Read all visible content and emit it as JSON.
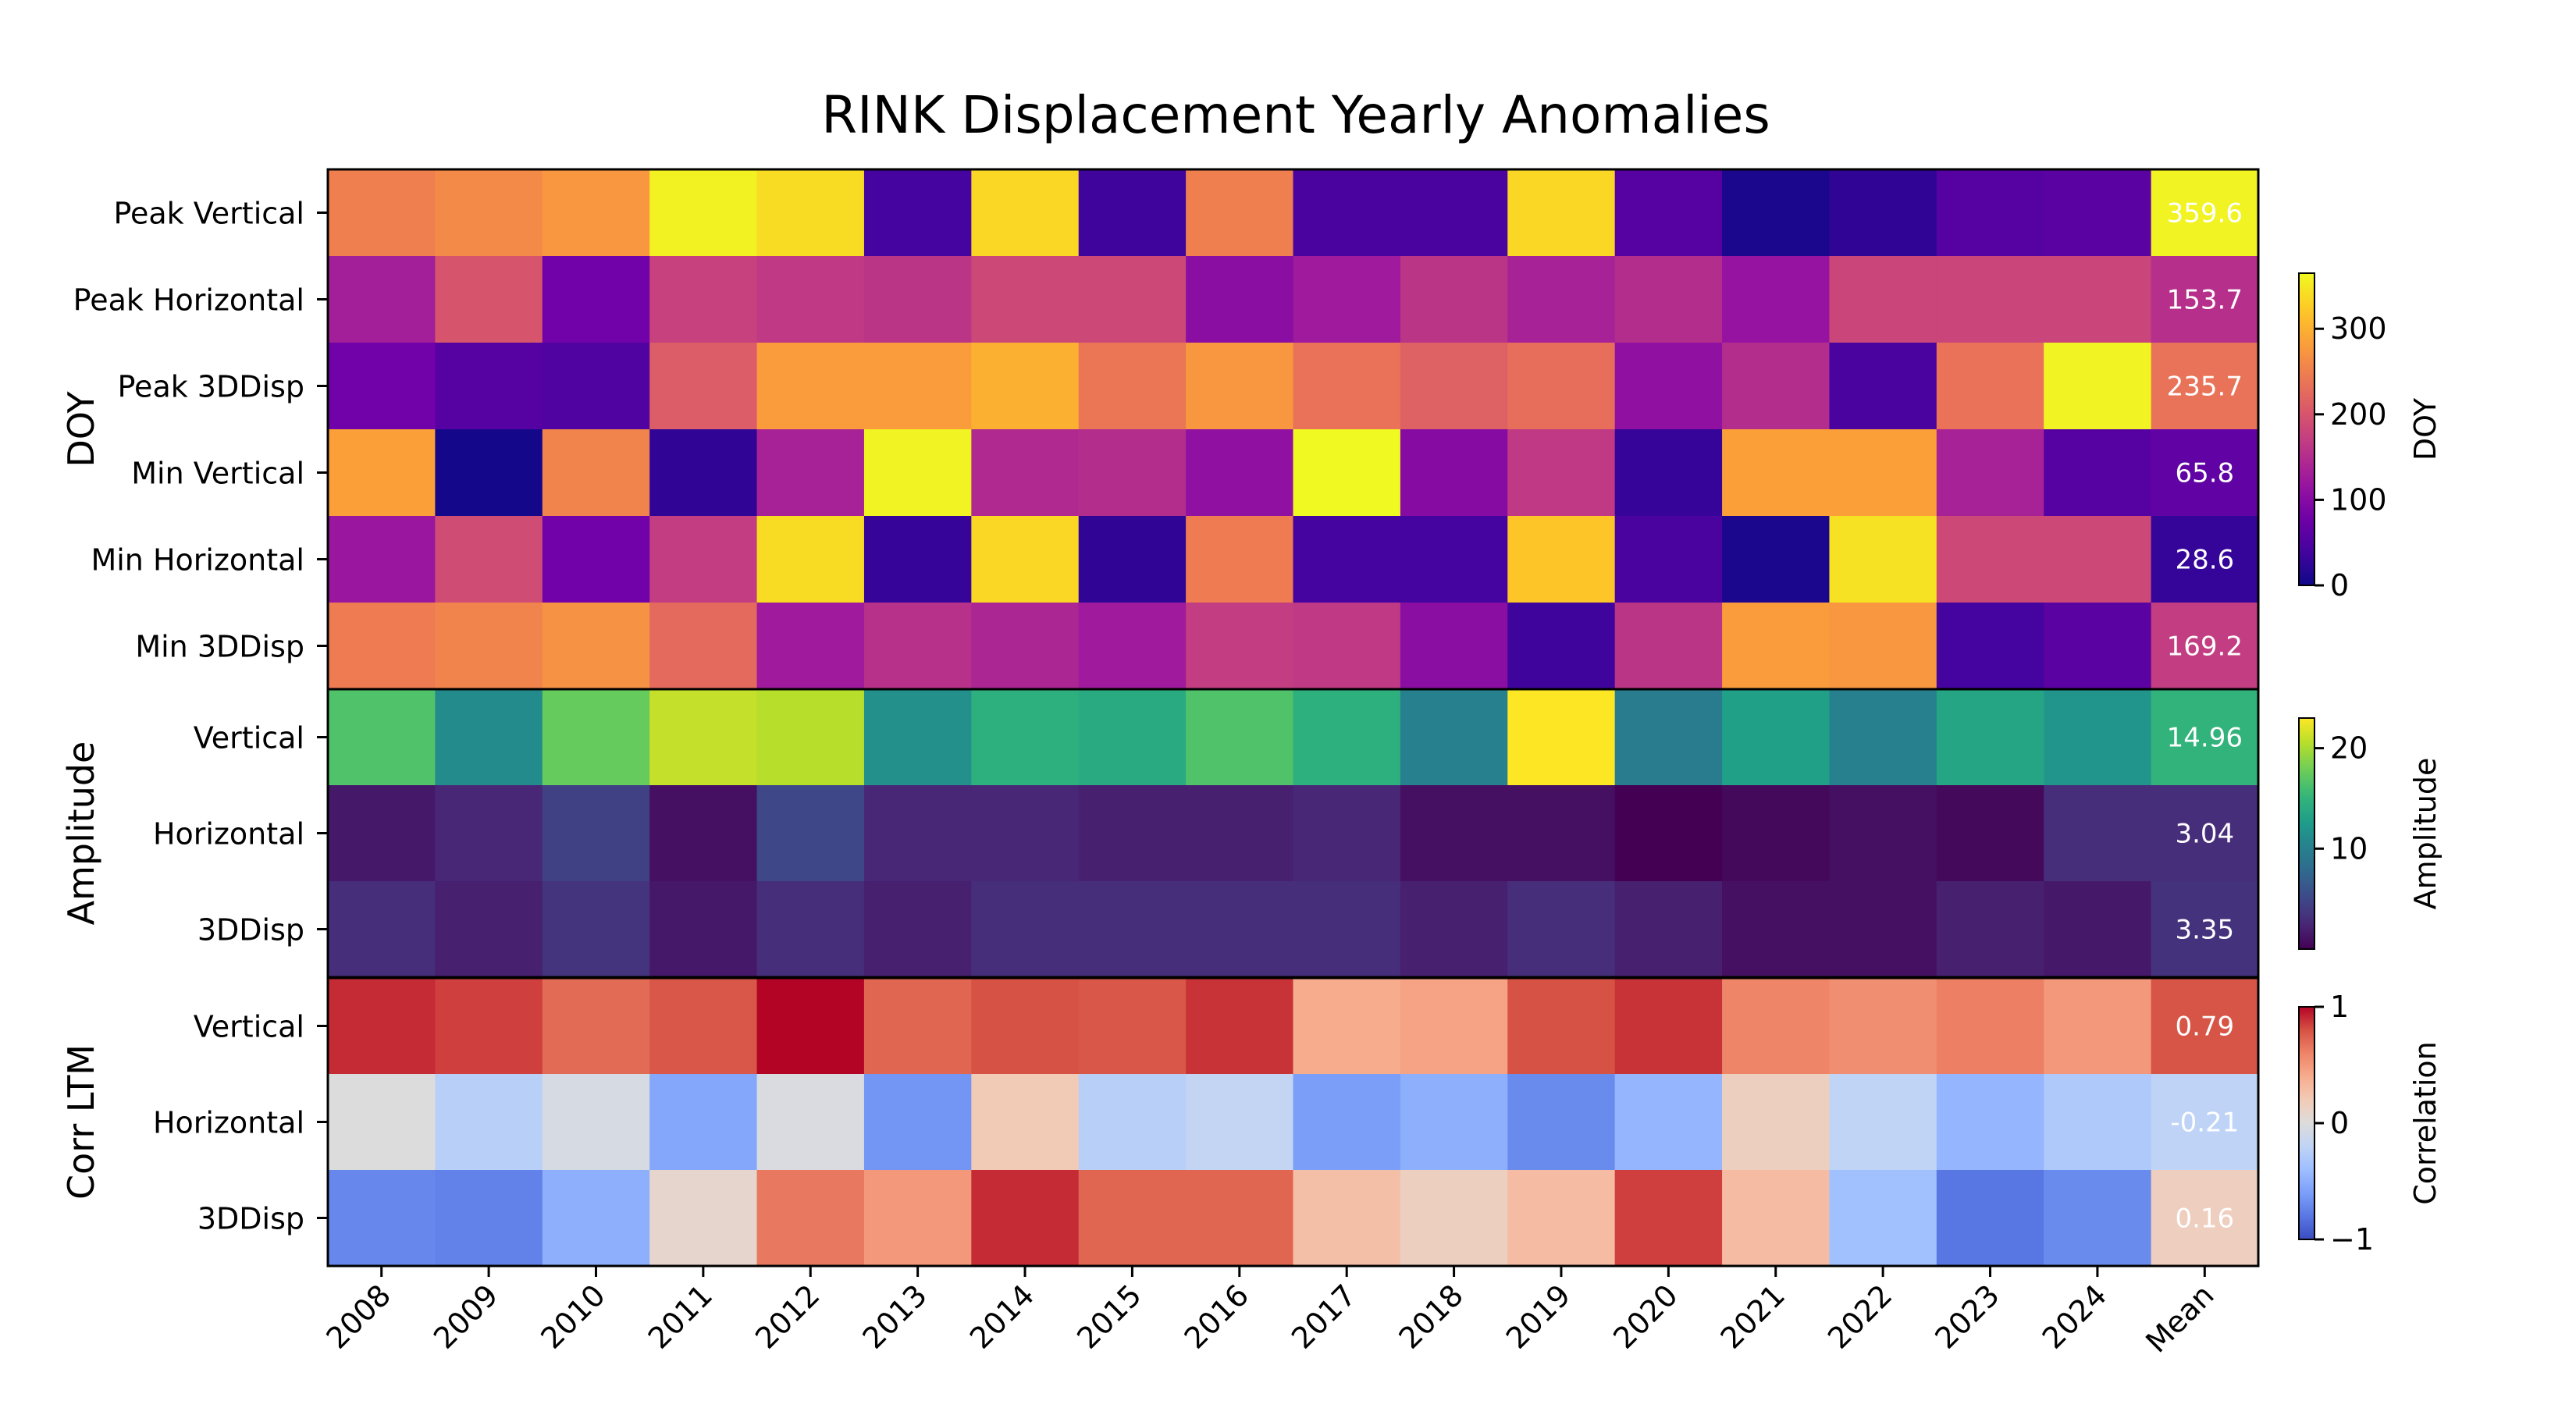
{
  "chart_data": {
    "type": "heatmap",
    "title": "RINK Displacement Yearly Anomalies",
    "columns": [
      "2008",
      "2009",
      "2010",
      "2011",
      "2012",
      "2013",
      "2014",
      "2015",
      "2016",
      "2017",
      "2018",
      "2019",
      "2020",
      "2021",
      "2022",
      "2023",
      "2024",
      "Mean"
    ],
    "panels": [
      {
        "group_label": "DOY",
        "colormap": "plasma",
        "vmin": 0,
        "vmax": 365,
        "colorbar_label": "DOY",
        "colorbar_ticks": [
          0,
          100,
          200,
          300
        ],
        "rows": [
          {
            "label": "Peak Vertical",
            "values": [
              250,
              262,
              275,
              358,
              340,
              40,
              335,
              35,
              250,
              45,
              45,
              335,
              55,
              10,
              25,
              55,
              60,
              359.6
            ],
            "mean_label": "359.6"
          },
          {
            "label": "Peak Horizontal",
            "values": [
              130,
              200,
              80,
              175,
              165,
              160,
              185,
              185,
              105,
              125,
              160,
              135,
              150,
              115,
              180,
              180,
              180,
              153.7
            ],
            "mean_label": "153.7"
          },
          {
            "label": "Peak 3DDisp",
            "values": [
              80,
              55,
              50,
              210,
              280,
              280,
              300,
              240,
              275,
              235,
              215,
              230,
              110,
              150,
              45,
              235,
              360,
              235.7
            ],
            "mean_label": "235.7"
          },
          {
            "label": "Min Vertical",
            "values": [
              285,
              5,
              255,
              25,
              135,
              360,
              145,
              150,
              110,
              365,
              100,
              165,
              30,
              285,
              285,
              135,
              55,
              65.8
            ],
            "mean_label": "65.8"
          },
          {
            "label": "Min Horizontal",
            "values": [
              120,
              190,
              80,
              170,
              340,
              30,
              335,
              25,
              245,
              40,
              40,
              320,
              45,
              10,
              345,
              185,
              185,
              28.6
            ],
            "mean_label": "28.6"
          },
          {
            "label": "Min 3DDisp",
            "values": [
              245,
              255,
              270,
              225,
              125,
              155,
              140,
              125,
              170,
              165,
              105,
              35,
              160,
              280,
              275,
              40,
              60,
              169.2
            ],
            "mean_label": "169.2"
          }
        ]
      },
      {
        "group_label": "Amplitude",
        "colormap": "viridis",
        "vmin": 0,
        "vmax": 23,
        "colorbar_label": "Amplitude",
        "colorbar_ticks": [
          10,
          20
        ],
        "rows": [
          {
            "label": "Vertical",
            "values": [
              16.5,
              11,
              17.5,
              21,
              20.5,
              11.5,
              14.5,
              14,
              16.5,
              14.5,
              10,
              23,
              9.5,
              13,
              10,
              13.5,
              12,
              14.96
            ],
            "mean_label": "14.96"
          },
          {
            "label": "Horizontal",
            "values": [
              1.5,
              2.5,
              4.5,
              1,
              5,
              2.5,
              2.5,
              2,
              2,
              2.5,
              1,
              1,
              0,
              0.5,
              1,
              0.5,
              3,
              3.04
            ],
            "mean_label": "3.04"
          },
          {
            "label": "3DDisp",
            "values": [
              3,
              2,
              3.5,
              1.5,
              3,
              2,
              3,
              3,
              3,
              3,
              2,
              3,
              2,
              1,
              1,
              2,
              1.5,
              3.35
            ],
            "mean_label": "3.35"
          }
        ]
      },
      {
        "group_label": "Corr LTM",
        "colormap": "coolwarm",
        "vmin": -1,
        "vmax": 1,
        "colorbar_label": "Correlation",
        "colorbar_ticks": [
          -1,
          0,
          1
        ],
        "rows": [
          {
            "label": "Vertical",
            "values": [
              0.9,
              0.85,
              0.7,
              0.78,
              1.0,
              0.72,
              0.8,
              0.78,
              0.88,
              0.4,
              0.45,
              0.8,
              0.88,
              0.6,
              0.55,
              0.62,
              0.5,
              0.79
            ],
            "mean_label": "0.79"
          },
          {
            "label": "Horizontal",
            "values": [
              0.0,
              -0.25,
              -0.05,
              -0.55,
              -0.03,
              -0.65,
              0.2,
              -0.25,
              -0.18,
              -0.6,
              -0.5,
              -0.7,
              -0.45,
              0.15,
              -0.2,
              -0.45,
              -0.3,
              -0.21
            ],
            "mean_label": "-0.21"
          },
          {
            "label": "3DDisp",
            "values": [
              -0.72,
              -0.75,
              -0.5,
              0.08,
              0.65,
              0.5,
              0.9,
              0.72,
              0.72,
              0.28,
              0.15,
              0.3,
              0.85,
              0.3,
              -0.38,
              -0.8,
              -0.7,
              0.16
            ],
            "mean_label": "0.16"
          }
        ]
      }
    ]
  }
}
